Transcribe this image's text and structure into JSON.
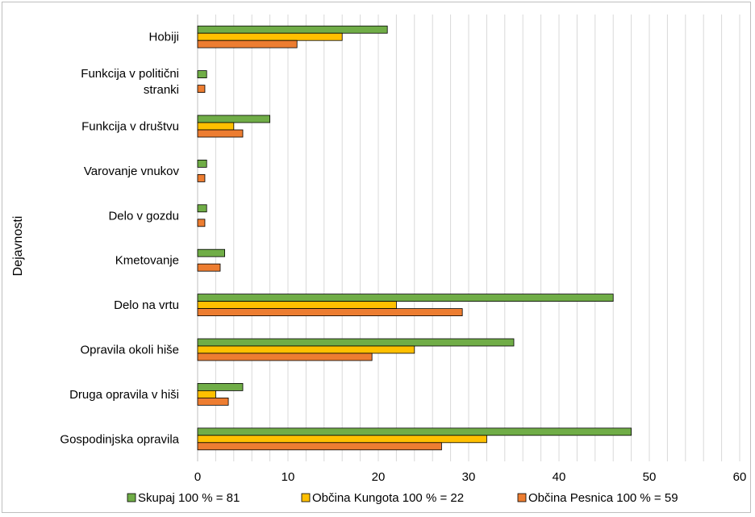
{
  "chart_data": {
    "type": "bar",
    "orientation": "horizontal",
    "ylabel": "Dejavnosti",
    "xlabel": "",
    "xlim": [
      0,
      60
    ],
    "xticks": [
      0,
      10,
      20,
      30,
      40,
      50,
      60
    ],
    "grid": true,
    "legend_position": "bottom",
    "categories": [
      [
        "Hobiji"
      ],
      [
        "Funkcija v politični",
        "stranki"
      ],
      [
        "Funkcija v društvu"
      ],
      [
        "Varovanje vnukov"
      ],
      [
        "Delo v gozdu"
      ],
      [
        "Kmetovanje"
      ],
      [
        "Delo na vrtu"
      ],
      [
        "Opravila okoli hiše"
      ],
      [
        "Druga opravila v hiši"
      ],
      [
        "Gospodinjska opravila"
      ]
    ],
    "series": [
      {
        "name": "Skupaj 100 % = 81",
        "color": "#70ad47",
        "values": [
          21,
          1,
          8,
          1,
          1,
          3,
          46,
          35,
          5,
          48
        ]
      },
      {
        "name": "Občina Kungota 100 % = 22",
        "color": "#ffc000",
        "values": [
          16,
          0,
          4,
          0,
          0,
          0,
          22,
          24,
          2,
          32
        ]
      },
      {
        "name": "Občina Pesnica 100 % = 59",
        "color": "#ed7d31",
        "values": [
          11,
          0.8,
          5,
          0.8,
          0.8,
          2.5,
          29.3,
          19.3,
          3.4,
          27
        ]
      }
    ]
  }
}
